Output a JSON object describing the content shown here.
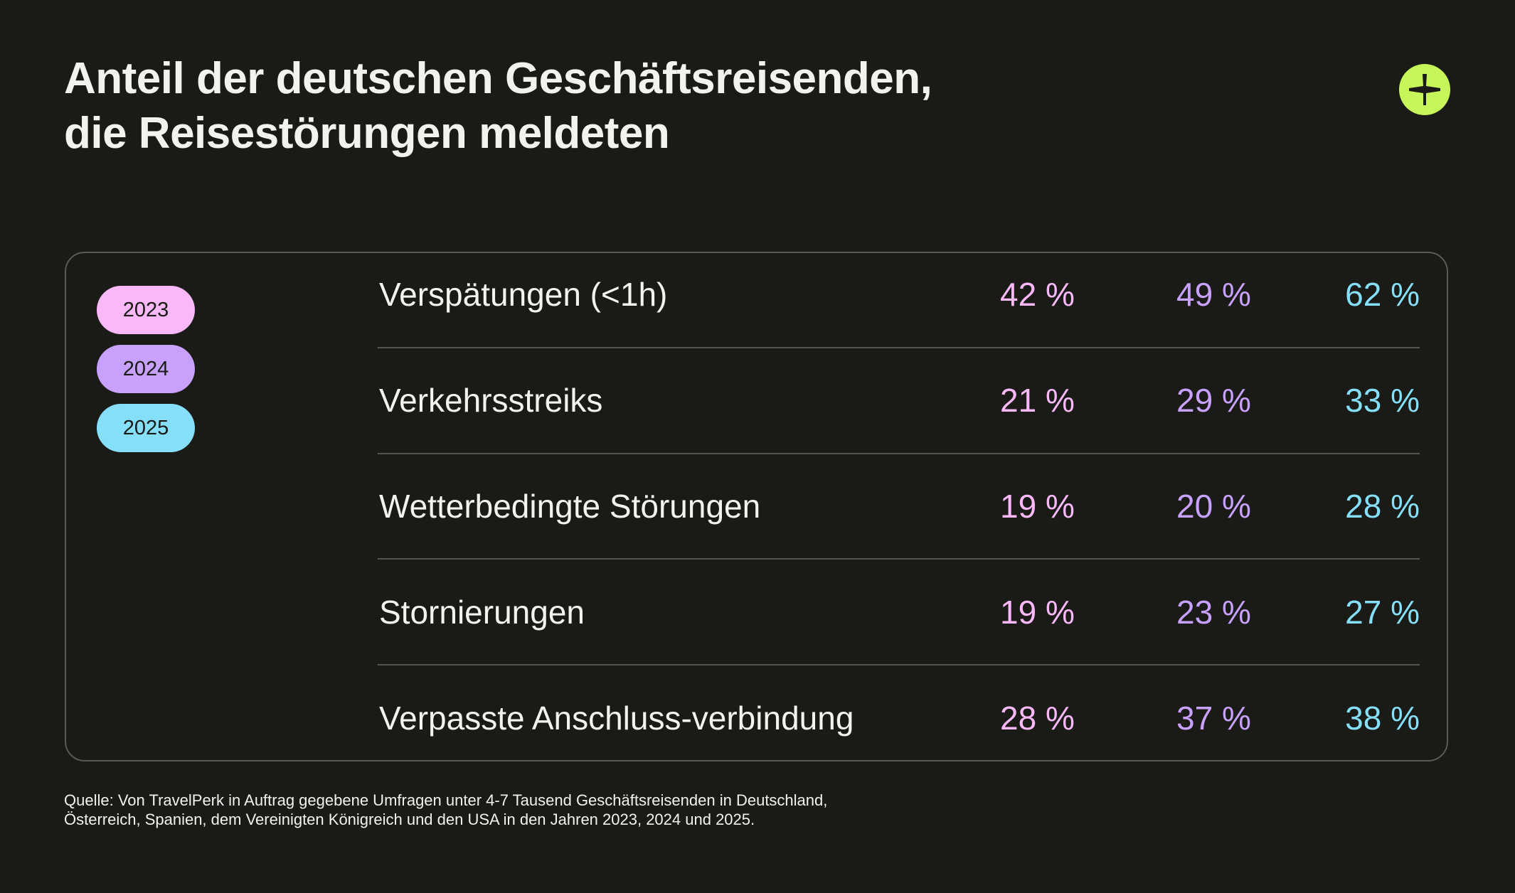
{
  "title": {
    "line1": "Anteil der deutschen Geschäftsreisenden,",
    "line2": "die Reisestörungen meldeten"
  },
  "colors": {
    "background": "#1a1a17",
    "accent": "#c6f659",
    "year_2023": "#f9b8f7",
    "year_2024": "#c7a1fb",
    "year_2025": "#86dff9"
  },
  "legend": [
    {
      "label": "2023",
      "color": "#f9b8f7"
    },
    {
      "label": "2024",
      "color": "#c7a1fb"
    },
    {
      "label": "2025",
      "color": "#86dff9"
    }
  ],
  "chart_data": {
    "type": "table",
    "title": "Anteil der deutschen Geschäftsreisenden, die Reisestörungen meldeten",
    "columns": [
      "2023",
      "2024",
      "2025"
    ],
    "rows": [
      {
        "label": "Verspätungen (<1h)",
        "values": [
          "42 %",
          "49 %",
          "62 %"
        ]
      },
      {
        "label": "Verkehrsstreiks",
        "values": [
          "21 %",
          "29 %",
          "33 %"
        ]
      },
      {
        "label": "Wetterbedingte Störungen",
        "values": [
          "19 %",
          "20 %",
          "28 %"
        ]
      },
      {
        "label": "Stornierungen",
        "values": [
          "19 %",
          "23 %",
          "27 %"
        ]
      },
      {
        "label": "Verpasste Anschluss-verbindung",
        "values": [
          "28 %",
          "37 %",
          "38 %"
        ]
      }
    ]
  },
  "footer": {
    "line1": "Quelle: Von TravelPerk in Auftrag gegebene Umfragen unter 4-7 Tausend Geschäftsreisenden in Deutschland,",
    "line2": "Österreich, Spanien, dem Vereinigten Königreich und den USA in den Jahren 2023, 2024 und 2025."
  }
}
